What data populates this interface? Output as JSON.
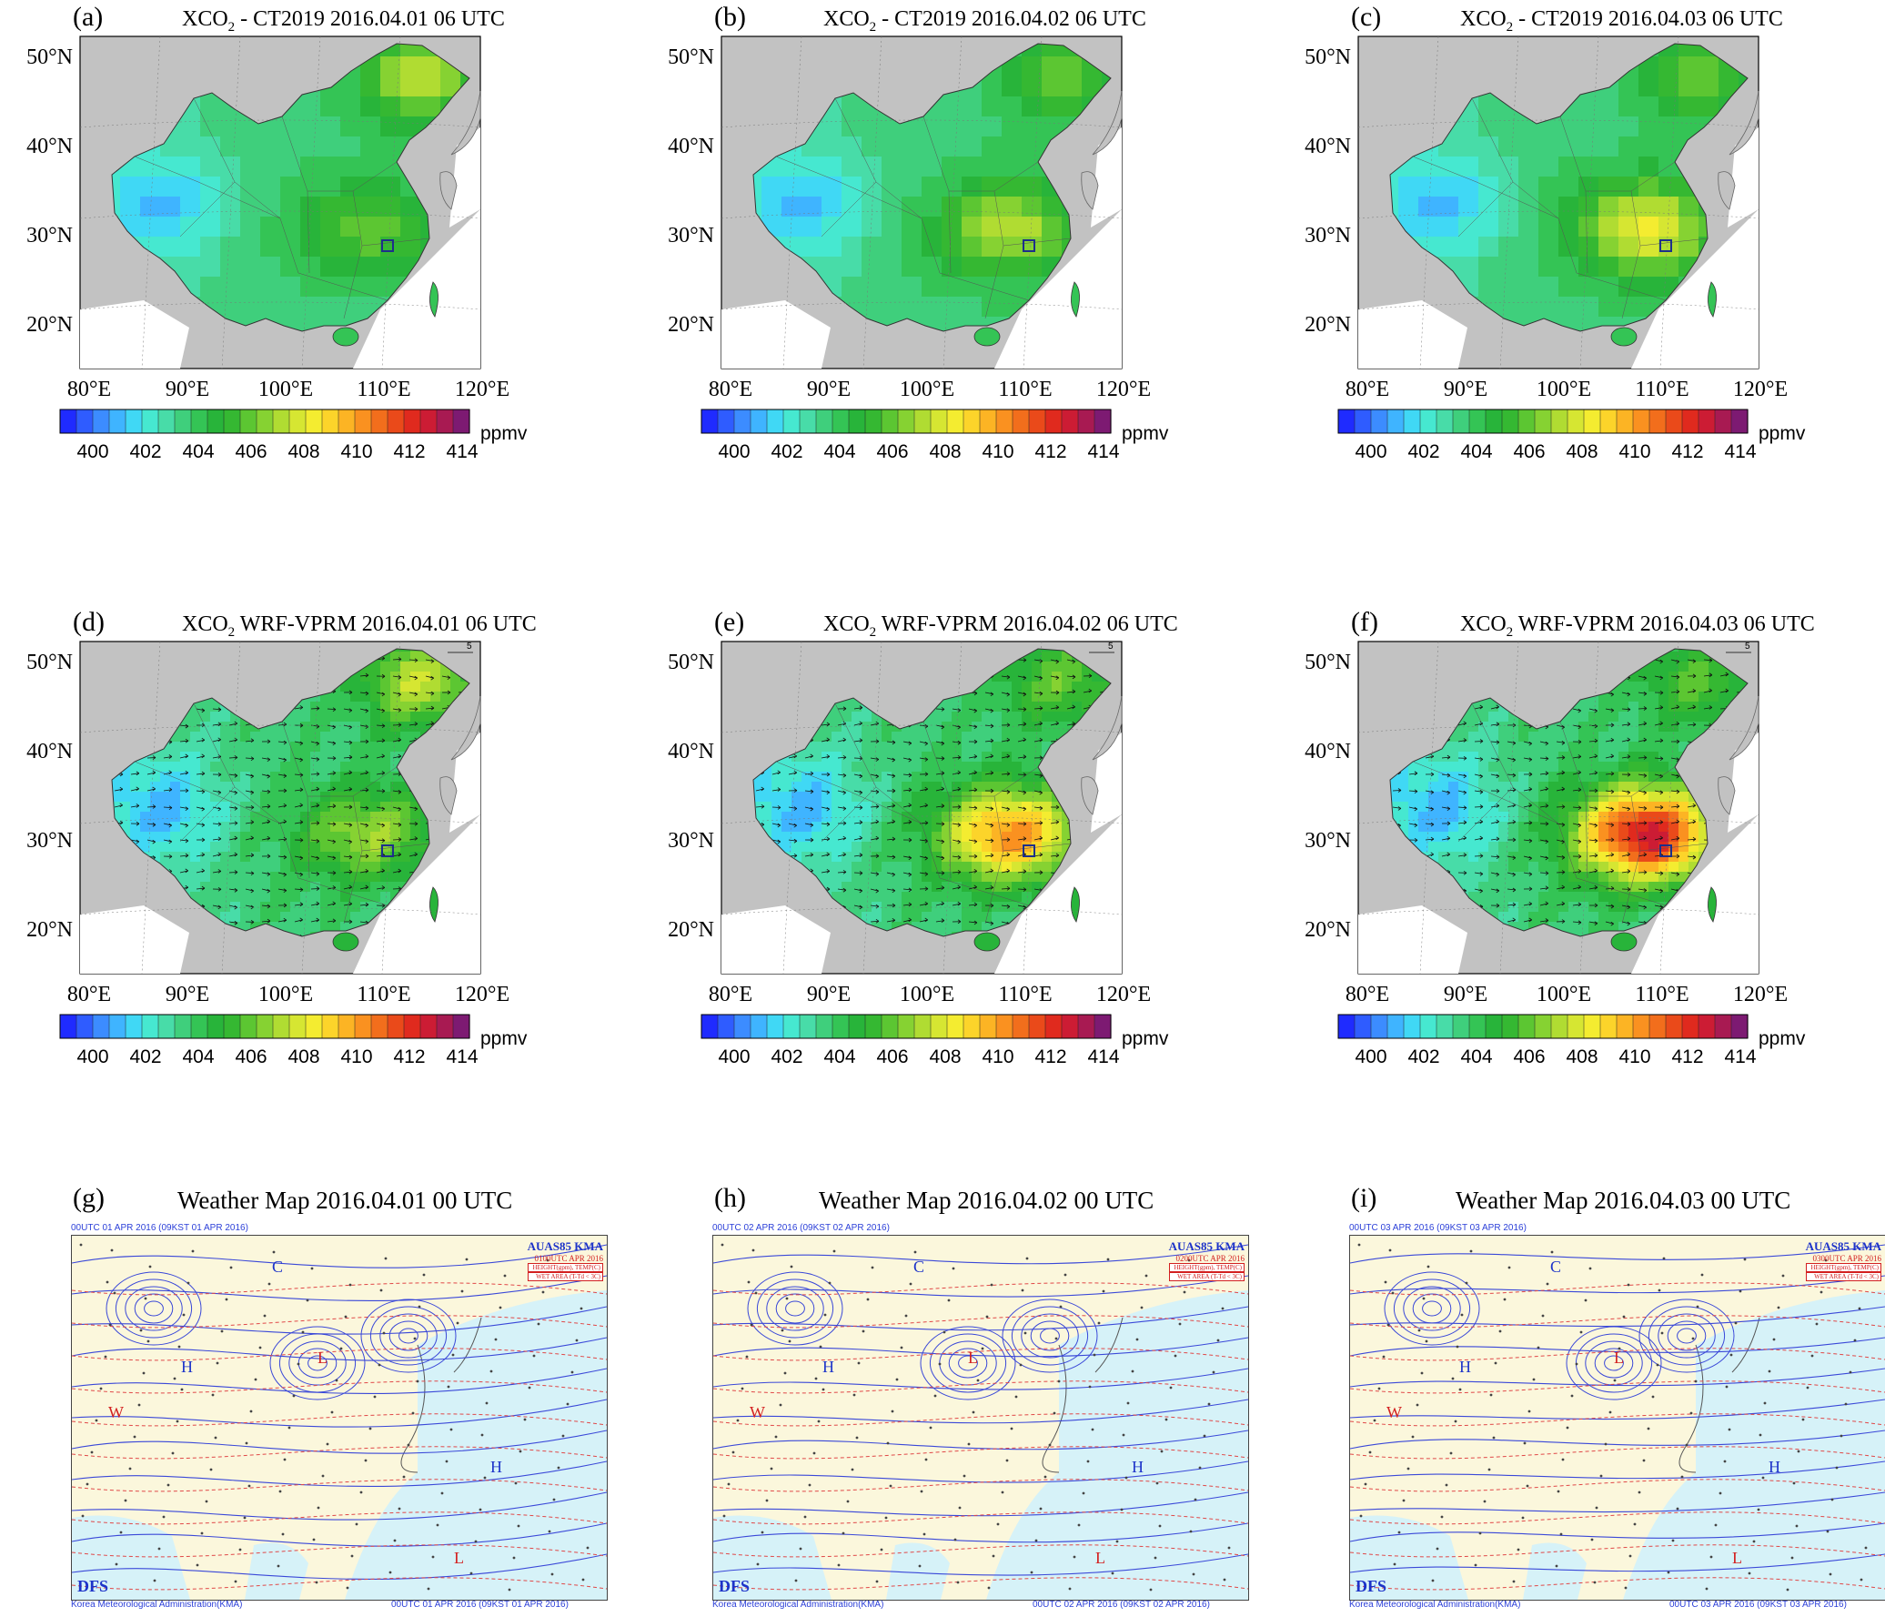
{
  "colorbar": {
    "ticks": [
      "400",
      "402",
      "404",
      "406",
      "408",
      "410",
      "412",
      "414"
    ],
    "unit": "ppmv",
    "range": [
      400,
      415
    ],
    "colors": [
      "#1f2bff",
      "#2f5cff",
      "#3c8cff",
      "#3fb4ff",
      "#40d8f5",
      "#46e8d0",
      "#48dca8",
      "#3fcf7c",
      "#34c455",
      "#28b43a",
      "#35b832",
      "#5cc632",
      "#86d232",
      "#b0dc32",
      "#d6e632",
      "#f4ec30",
      "#fcd42a",
      "#fcb424",
      "#fa9120",
      "#f26e1c",
      "#ea4a1a",
      "#e02a1e",
      "#cc1c34",
      "#a81a52",
      "#7d1a72"
    ]
  },
  "axes": {
    "lat_labels": [
      "50°N",
      "40°N",
      "30°N",
      "20°N"
    ],
    "lon_labels": [
      "80°E",
      "90°E",
      "100°E",
      "110°E",
      "120°E"
    ]
  },
  "panels": [
    {
      "label": "(a)",
      "title_pre": "XCO",
      "title_sub": "2",
      "title_post": " - CT2019 2016.04.01 06 UTC",
      "kind": "ct",
      "day": 1
    },
    {
      "label": "(b)",
      "title_pre": "XCO",
      "title_sub": "2",
      "title_post": " - CT2019 2016.04.02 06 UTC",
      "kind": "ct",
      "day": 2
    },
    {
      "label": "(c)",
      "title_pre": "XCO",
      "title_sub": "2",
      "title_post": " - CT2019 2016.04.03 06 UTC",
      "kind": "ct",
      "day": 3
    },
    {
      "label": "(d)",
      "title_pre": "XCO",
      "title_sub": "2",
      "title_post": " WRF-VPRM 2016.04.01 06 UTC",
      "kind": "wrf",
      "day": 1,
      "vector_ref": "5"
    },
    {
      "label": "(e)",
      "title_pre": "XCO",
      "title_sub": "2",
      "title_post": " WRF-VPRM 2016.04.02 06 UTC",
      "kind": "wrf",
      "day": 2,
      "vector_ref": "5"
    },
    {
      "label": "(f)",
      "title_pre": "XCO",
      "title_sub": "2",
      "title_post": " WRF-VPRM 2016.04.03 06 UTC",
      "kind": "wrf",
      "day": 3,
      "vector_ref": "5"
    }
  ],
  "weather": [
    {
      "label": "(g)",
      "title": "Weather Map 2016.04.01 00 UTC",
      "hdr_top": "00UTC 01 APR 2016 (09KST 01 APR 2016)",
      "hdr_bl": "Korea Meteorological Administration(KMA)",
      "hdr_br": "00UTC 01 APR 2016 (09KST 01 APR 2016)",
      "tag1": "AUAS85 KMA",
      "tag2": "0100UTC APR 2016",
      "tag3": "HEIGHT(gpm), TEMP(C)",
      "tag4": "WET AREA (T-Td < 3C)",
      "brand": "DFS"
    },
    {
      "label": "(h)",
      "title": "Weather Map 2016.04.02 00 UTC",
      "hdr_top": "00UTC 02 APR 2016 (09KST 02 APR 2016)",
      "hdr_bl": "Korea Meteorological Administration(KMA)",
      "hdr_br": "00UTC 02 APR 2016 (09KST 02 APR 2016)",
      "tag1": "AUAS85 KMA",
      "tag2": "0200UTC APR 2016",
      "tag3": "HEIGHT(gpm), TEMP(C)",
      "tag4": "WET AREA (T-Td < 3C)",
      "brand": "DFS"
    },
    {
      "label": "(i)",
      "title": "Weather Map 2016.04.03 00 UTC",
      "hdr_top": "00UTC 03 APR 2016 (09KST 03 APR 2016)",
      "hdr_bl": "Korea Meteorological Administration(KMA)",
      "hdr_br": "00UTC 03 APR 2016 (09KST 03 APR 2016)",
      "tag1": "AUAS85 KMA",
      "tag2": "0300UTC APR 2016",
      "tag3": "HEIGHT(gpm), TEMP(C)",
      "tag4": "WET AREA (T-Td < 3C)",
      "brand": "DFS"
    }
  ]
}
